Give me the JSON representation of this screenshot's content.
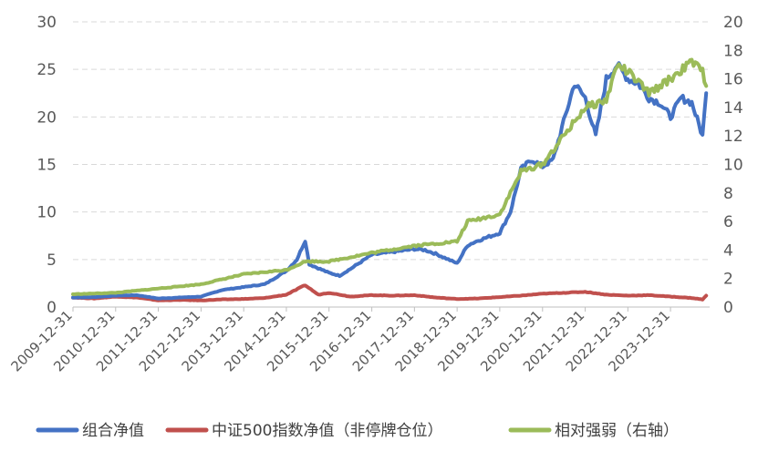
{
  "chart_data": {
    "type": "line",
    "x_tick_labels": [
      "2009-12-31",
      "2010-12-31",
      "2011-12-31",
      "2012-12-31",
      "2013-12-31",
      "2014-12-31",
      "2015-12-31",
      "2016-12-31",
      "2017-12-31",
      "2018-12-31",
      "2019-12-31",
      "2020-12-31",
      "2021-12-31",
      "2022-12-31",
      "2023-12-31"
    ],
    "y_left": {
      "min": 0,
      "max": 30,
      "ticks": [
        0,
        5,
        10,
        15,
        20,
        25,
        30
      ]
    },
    "y_right": {
      "min": 0,
      "max": 20,
      "ticks": [
        0,
        2,
        4,
        6,
        8,
        10,
        12,
        14,
        16,
        18,
        20
      ]
    },
    "grid": true,
    "legend_position": "bottom",
    "series": [
      {
        "name": "组合净值",
        "axis": "left",
        "color": "#4472c4",
        "points": [
          [
            "2009-12-31",
            1.0
          ],
          [
            "2010-06-30",
            1.05
          ],
          [
            "2010-12-31",
            1.2
          ],
          [
            "2011-06-30",
            1.25
          ],
          [
            "2011-12-31",
            0.9
          ],
          [
            "2012-06-30",
            1.0
          ],
          [
            "2012-12-31",
            1.1
          ],
          [
            "2013-06-30",
            1.8
          ],
          [
            "2013-12-31",
            2.1
          ],
          [
            "2014-06-30",
            2.4
          ],
          [
            "2014-12-31",
            3.8
          ],
          [
            "2015-03-31",
            5.0
          ],
          [
            "2015-06-10",
            7.0
          ],
          [
            "2015-07-15",
            4.5
          ],
          [
            "2015-12-31",
            3.6
          ],
          [
            "2016-03-31",
            3.3
          ],
          [
            "2016-06-30",
            4.0
          ],
          [
            "2016-12-31",
            5.5
          ],
          [
            "2017-06-30",
            5.8
          ],
          [
            "2017-12-31",
            6.1
          ],
          [
            "2018-03-31",
            6.0
          ],
          [
            "2018-06-30",
            5.6
          ],
          [
            "2018-12-31",
            4.6
          ],
          [
            "2019-03-31",
            6.5
          ],
          [
            "2019-06-30",
            7.0
          ],
          [
            "2019-12-31",
            7.8
          ],
          [
            "2020-03-31",
            10.0
          ],
          [
            "2020-06-30",
            14.5
          ],
          [
            "2020-09-30",
            15.5
          ],
          [
            "2020-12-31",
            14.8
          ],
          [
            "2021-03-31",
            15.5
          ],
          [
            "2021-06-30",
            19.5
          ],
          [
            "2021-09-30",
            23.5
          ],
          [
            "2021-12-31",
            22.0
          ],
          [
            "2022-03-31",
            18.0
          ],
          [
            "2022-06-30",
            24.0
          ],
          [
            "2022-09-30",
            25.5
          ],
          [
            "2022-12-31",
            24.0
          ],
          [
            "2023-03-31",
            23.5
          ],
          [
            "2023-06-30",
            22.0
          ],
          [
            "2023-09-30",
            21.5
          ],
          [
            "2023-12-31",
            20.0
          ],
          [
            "2024-03-31",
            22.0
          ],
          [
            "2024-06-30",
            21.5
          ],
          [
            "2024-09-30",
            18.0
          ],
          [
            "2024-10-31",
            22.5
          ]
        ]
      },
      {
        "name": "中证500指数净值（非停牌仓位）",
        "axis": "left",
        "color": "#c0504d",
        "points": [
          [
            "2009-12-31",
            1.0
          ],
          [
            "2010-06-30",
            0.9
          ],
          [
            "2010-12-31",
            1.1
          ],
          [
            "2011-06-30",
            1.0
          ],
          [
            "2011-12-31",
            0.7
          ],
          [
            "2012-06-30",
            0.75
          ],
          [
            "2012-12-31",
            0.7
          ],
          [
            "2013-06-30",
            0.8
          ],
          [
            "2013-12-31",
            0.85
          ],
          [
            "2014-06-30",
            0.95
          ],
          [
            "2014-12-31",
            1.3
          ],
          [
            "2015-06-10",
            2.3
          ],
          [
            "2015-09-30",
            1.3
          ],
          [
            "2015-12-31",
            1.5
          ],
          [
            "2016-06-30",
            1.1
          ],
          [
            "2016-12-31",
            1.25
          ],
          [
            "2017-06-30",
            1.2
          ],
          [
            "2017-12-31",
            1.25
          ],
          [
            "2018-06-30",
            1.0
          ],
          [
            "2018-12-31",
            0.85
          ],
          [
            "2019-06-30",
            0.9
          ],
          [
            "2019-12-31",
            1.05
          ],
          [
            "2020-06-30",
            1.2
          ],
          [
            "2020-12-31",
            1.4
          ],
          [
            "2021-06-30",
            1.5
          ],
          [
            "2021-12-31",
            1.6
          ],
          [
            "2022-06-30",
            1.3
          ],
          [
            "2022-12-31",
            1.2
          ],
          [
            "2023-06-30",
            1.25
          ],
          [
            "2023-12-31",
            1.1
          ],
          [
            "2024-06-30",
            0.95
          ],
          [
            "2024-09-30",
            0.8
          ],
          [
            "2024-10-31",
            1.2
          ]
        ]
      },
      {
        "name": "相对强弱（右轴）",
        "axis": "right",
        "color": "#9bbb59",
        "points": [
          [
            "2009-12-31",
            0.9
          ],
          [
            "2010-12-31",
            1.0
          ],
          [
            "2011-12-31",
            1.3
          ],
          [
            "2012-12-31",
            1.6
          ],
          [
            "2013-12-31",
            2.3
          ],
          [
            "2014-12-31",
            2.6
          ],
          [
            "2015-06-10",
            3.2
          ],
          [
            "2015-12-31",
            3.2
          ],
          [
            "2016-12-31",
            3.8
          ],
          [
            "2017-12-31",
            4.3
          ],
          [
            "2018-12-31",
            4.6
          ],
          [
            "2019-03-31",
            6.0
          ],
          [
            "2019-12-31",
            6.5
          ],
          [
            "2020-06-30",
            9.5
          ],
          [
            "2020-12-31",
            10.0
          ],
          [
            "2021-06-30",
            12.0
          ],
          [
            "2021-12-31",
            14.0
          ],
          [
            "2022-06-30",
            14.5
          ],
          [
            "2022-09-30",
            17.0
          ],
          [
            "2022-12-31",
            16.5
          ],
          [
            "2023-06-30",
            15.0
          ],
          [
            "2023-12-31",
            16.0
          ],
          [
            "2024-06-30",
            17.2
          ],
          [
            "2024-09-30",
            16.5
          ],
          [
            "2024-10-31",
            15.5
          ]
        ]
      }
    ]
  }
}
